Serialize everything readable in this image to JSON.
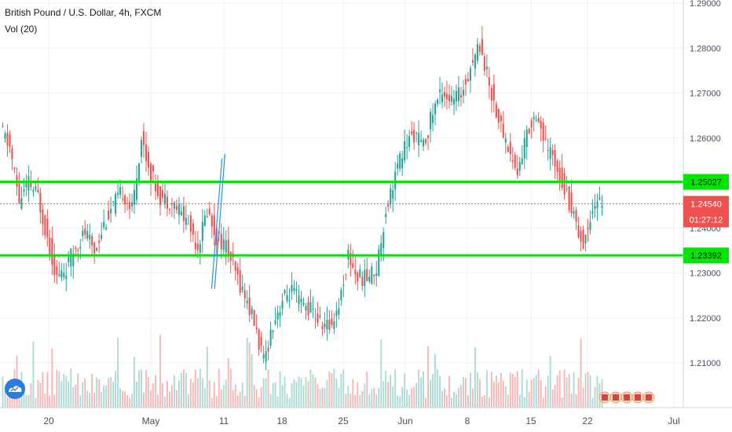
{
  "header": {
    "title": "British Pound / U.S. Dollar, 4h, FXCM",
    "volume_label": "Vol (20)"
  },
  "chart_data": {
    "type": "candlestick",
    "x_labels": [
      "20",
      "May",
      "11",
      "18",
      "25",
      "Jun",
      "8",
      "15",
      "22",
      "Jul"
    ],
    "y_ticks": [
      "1.29000",
      "1.28000",
      "1.27000",
      "1.26000",
      "1.24000",
      "1.23000",
      "1.22000",
      "1.21000"
    ],
    "ylim": [
      1.2,
      1.29
    ],
    "grid": true,
    "price_series": [
      1.262,
      1.258,
      1.246,
      1.25,
      1.247,
      1.238,
      1.229,
      1.231,
      1.236,
      1.239,
      1.235,
      1.241,
      1.245,
      1.248,
      1.244,
      1.26,
      1.252,
      1.247,
      1.246,
      1.244,
      1.241,
      1.236,
      1.244,
      1.238,
      1.236,
      1.23,
      1.225,
      1.219,
      1.21,
      1.219,
      1.224,
      1.226,
      1.223,
      1.222,
      1.219,
      1.218,
      1.223,
      1.234,
      1.229,
      1.229,
      1.231,
      1.244,
      1.252,
      1.258,
      1.261,
      1.258,
      1.266,
      1.271,
      1.268,
      1.27,
      1.276,
      1.281,
      1.272,
      1.264,
      1.258,
      1.252,
      1.261,
      1.266,
      1.258,
      1.255,
      1.249,
      1.243,
      1.236,
      1.245,
      1.246
    ],
    "levels": [
      {
        "label": "1.25027",
        "value": 1.25027,
        "color": "#00e600",
        "type": "horizontal_line"
      },
      {
        "label": "1.23392",
        "value": 1.23392,
        "color": "#00e600",
        "type": "horizontal_line"
      }
    ],
    "last_price": {
      "label": "1.24540",
      "value": 1.2454,
      "color": "#f0514f"
    },
    "countdown": "01:27:12",
    "channel": {
      "color": "#2196f3",
      "lines": [
        {
          "start": [
            22,
            1.2265
          ],
          "end": [
            23.4,
            1.2555
          ]
        },
        {
          "start": [
            22.4,
            1.2265
          ],
          "end": [
            23.8,
            1.2565
          ]
        }
      ]
    },
    "colors": {
      "up": "#26a69a",
      "down": "#ef5350",
      "vol_up": "#a8d9d2",
      "vol_down": "#f5b4b2"
    }
  }
}
